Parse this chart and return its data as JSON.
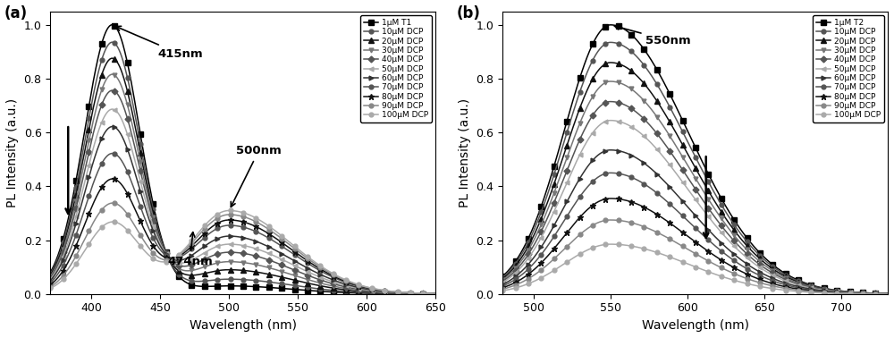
{
  "panel_a": {
    "title_label": "(a)",
    "xlabel": "Wavelength (nm)",
    "ylabel": "PL Intensity (a.u.)",
    "xlim": [
      370,
      650
    ],
    "ylim": [
      0,
      1.05
    ],
    "xticks": [
      400,
      450,
      500,
      550,
      600,
      650
    ],
    "legend_labels": [
      "1μM T1",
      "10μM DCP",
      "20μM DCP",
      "30μM DCP",
      "40μM DCP",
      "50μM DCP",
      "60μM DCP",
      "70μM DCP",
      "80μM DCP",
      "90μM DCP",
      "100μM DCP"
    ],
    "peak1_heights": [
      1.0,
      0.935,
      0.875,
      0.815,
      0.755,
      0.685,
      0.62,
      0.52,
      0.425,
      0.335,
      0.265
    ],
    "peak2_heights": [
      0.03,
      0.055,
      0.09,
      0.12,
      0.155,
      0.185,
      0.215,
      0.255,
      0.275,
      0.295,
      0.31
    ],
    "colors": [
      "#000000",
      "#555555",
      "#111111",
      "#777777",
      "#555555",
      "#aaaaaa",
      "#333333",
      "#555555",
      "#111111",
      "#888888",
      "#aaaaaa"
    ],
    "markers": [
      "s",
      "o",
      "^",
      "v",
      "D",
      "<",
      ">",
      "o",
      "*",
      "o",
      "o"
    ],
    "marker_sizes": [
      4,
      3.5,
      4,
      3.5,
      3.5,
      3.5,
      3.5,
      3.5,
      4.5,
      3.5,
      3.5
    ],
    "markevery": 20
  },
  "panel_b": {
    "title_label": "(b)",
    "xlabel": "Wavelength (nm)",
    "ylabel": "PL Intensity (a.u.)",
    "xlim": [
      480,
      730
    ],
    "ylim": [
      0,
      1.05
    ],
    "xticks": [
      500,
      550,
      600,
      650,
      700
    ],
    "legend_labels": [
      "1μM T2",
      "10μM DCP",
      "20μM DCP",
      "30μM DCP",
      "40μM DCP",
      "50μM DCP",
      "60μM DCP",
      "70μM DCP",
      "80μM DCP",
      "90μM DCP",
      "100μM DCP"
    ],
    "peak_heights": [
      1.0,
      0.935,
      0.86,
      0.79,
      0.715,
      0.645,
      0.535,
      0.45,
      0.355,
      0.275,
      0.185
    ],
    "colors": [
      "#000000",
      "#555555",
      "#111111",
      "#777777",
      "#555555",
      "#aaaaaa",
      "#333333",
      "#555555",
      "#111111",
      "#888888",
      "#aaaaaa"
    ],
    "markers": [
      "s",
      "o",
      "^",
      "v",
      "D",
      "<",
      ">",
      "o",
      "*",
      "o",
      "o"
    ],
    "marker_sizes": [
      4,
      3.5,
      4,
      3.5,
      3.5,
      3.5,
      3.5,
      3.5,
      4.5,
      3.5,
      3.5
    ],
    "markevery": 20
  }
}
